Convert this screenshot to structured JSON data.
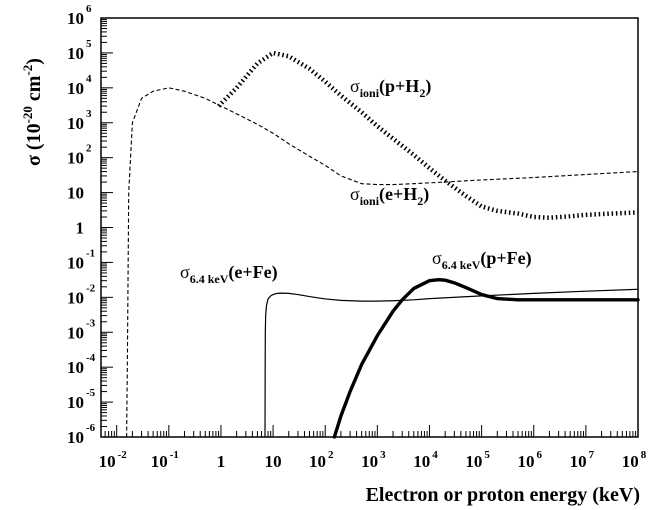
{
  "chart_data": {
    "type": "line",
    "xlabel": "Electron or proton energy (keV)",
    "ylabel": "σ (10⁻²⁰ cm⁻²)",
    "ylabel_parts": {
      "sym": "σ",
      "open": " (10",
      "exp1": "-20",
      "mid": " cm",
      "exp2": "-2",
      "close": ")"
    },
    "xscale": "log",
    "yscale": "log",
    "xlim": [
      0.005,
      100000000
    ],
    "ylim": [
      1e-06,
      1000000
    ],
    "x_ticks": [
      {
        "base": "10",
        "exp": "-2"
      },
      {
        "base": "10",
        "exp": "-1"
      },
      {
        "base": "1",
        "exp": ""
      },
      {
        "base": "10",
        "exp": ""
      },
      {
        "base": "10",
        "exp": "2"
      },
      {
        "base": "10",
        "exp": "3"
      },
      {
        "base": "10",
        "exp": "4"
      },
      {
        "base": "10",
        "exp": "5"
      },
      {
        "base": "10",
        "exp": "6"
      },
      {
        "base": "10",
        "exp": "7"
      },
      {
        "base": "10",
        "exp": "8"
      }
    ],
    "y_ticks": [
      {
        "base": "10",
        "exp": "-6"
      },
      {
        "base": "10",
        "exp": "-5"
      },
      {
        "base": "10",
        "exp": "-4"
      },
      {
        "base": "10",
        "exp": "-3"
      },
      {
        "base": "10",
        "exp": "-2"
      },
      {
        "base": "10",
        "exp": "-1"
      },
      {
        "base": "1",
        "exp": ""
      },
      {
        "base": "10",
        "exp": ""
      },
      {
        "base": "10",
        "exp": "2"
      },
      {
        "base": "10",
        "exp": "3"
      },
      {
        "base": "10",
        "exp": "4"
      },
      {
        "base": "10",
        "exp": "5"
      },
      {
        "base": "10",
        "exp": "6"
      }
    ],
    "series": [
      {
        "name": "σ_ioni(p+H2)",
        "label": {
          "sym": "σ",
          "sub": "ioni",
          "rest": "(p+H",
          "sub2": "2",
          "end": ")"
        },
        "style": "dotted-thick",
        "x": [
          0.9,
          2,
          5,
          10,
          20,
          50,
          100,
          200,
          500,
          1000,
          2000,
          5000,
          10000,
          20000,
          50000,
          100000,
          200000,
          500000,
          1000000,
          2000000,
          5000000,
          10000000,
          30000000,
          100000000
        ],
        "y": [
          3000,
          10000,
          50000,
          100000,
          80000,
          35000,
          15000,
          6000,
          2000,
          800,
          350,
          120,
          50,
          22,
          8,
          4,
          3,
          2.5,
          2,
          1.9,
          2.1,
          2.3,
          2.5,
          2.7
        ]
      },
      {
        "name": "σ_ioni(e+H2)",
        "label": {
          "sym": "σ",
          "sub": "ioni",
          "rest": "(e+H",
          "sub2": "2",
          "end": ")"
        },
        "style": "dashed-thin",
        "x": [
          0.0155,
          0.016,
          0.017,
          0.02,
          0.03,
          0.05,
          0.1,
          0.2,
          0.5,
          1,
          2,
          5,
          10,
          20,
          50,
          100,
          200,
          500,
          1000,
          2000,
          5000,
          10000,
          100000,
          1000000,
          10000000,
          100000000
        ],
        "y": [
          1e-06,
          0.0001,
          10,
          1000,
          5000,
          8000,
          10000,
          8000,
          5000,
          3000,
          1800,
          900,
          500,
          250,
          110,
          60,
          30,
          18,
          17,
          17,
          18,
          19,
          23,
          27,
          33,
          40
        ]
      },
      {
        "name": "σ_6.4keV(e+Fe)",
        "label": {
          "sym": "σ",
          "sub": "6.4 keV",
          "rest": "(e+Fe)",
          "sub2": "",
          "end": ""
        },
        "style": "solid-thin",
        "x": [
          7.0,
          7.05,
          7.1,
          7.2,
          7.5,
          8,
          9,
          10,
          12,
          15,
          20,
          30,
          50,
          100,
          200,
          500,
          1000,
          2000,
          5000,
          10000,
          100000,
          1000000,
          10000000,
          100000000
        ],
        "y": [
          1e-06,
          0.0001,
          0.001,
          0.003,
          0.006,
          0.009,
          0.011,
          0.012,
          0.013,
          0.0132,
          0.013,
          0.012,
          0.0105,
          0.009,
          0.0082,
          0.0078,
          0.0078,
          0.008,
          0.0085,
          0.0092,
          0.011,
          0.013,
          0.015,
          0.017
        ]
      },
      {
        "name": "σ_6.4keV(p+Fe)",
        "label": {
          "sym": "σ",
          "sub": "6.4 keV",
          "rest": "(p+Fe)",
          "sub2": "",
          "end": ""
        },
        "style": "solid-thick",
        "x": [
          150,
          200,
          300,
          500,
          1000,
          2000,
          3000,
          5000,
          10000,
          15000,
          20000,
          30000,
          50000,
          100000,
          200000,
          500000,
          1000000,
          10000000,
          100000000
        ],
        "y": [
          1e-06,
          4e-06,
          2e-05,
          0.00012,
          0.0008,
          0.004,
          0.0085,
          0.018,
          0.03,
          0.032,
          0.031,
          0.026,
          0.019,
          0.012,
          0.0092,
          0.0085,
          0.0085,
          0.0085,
          0.0085
        ]
      }
    ]
  }
}
